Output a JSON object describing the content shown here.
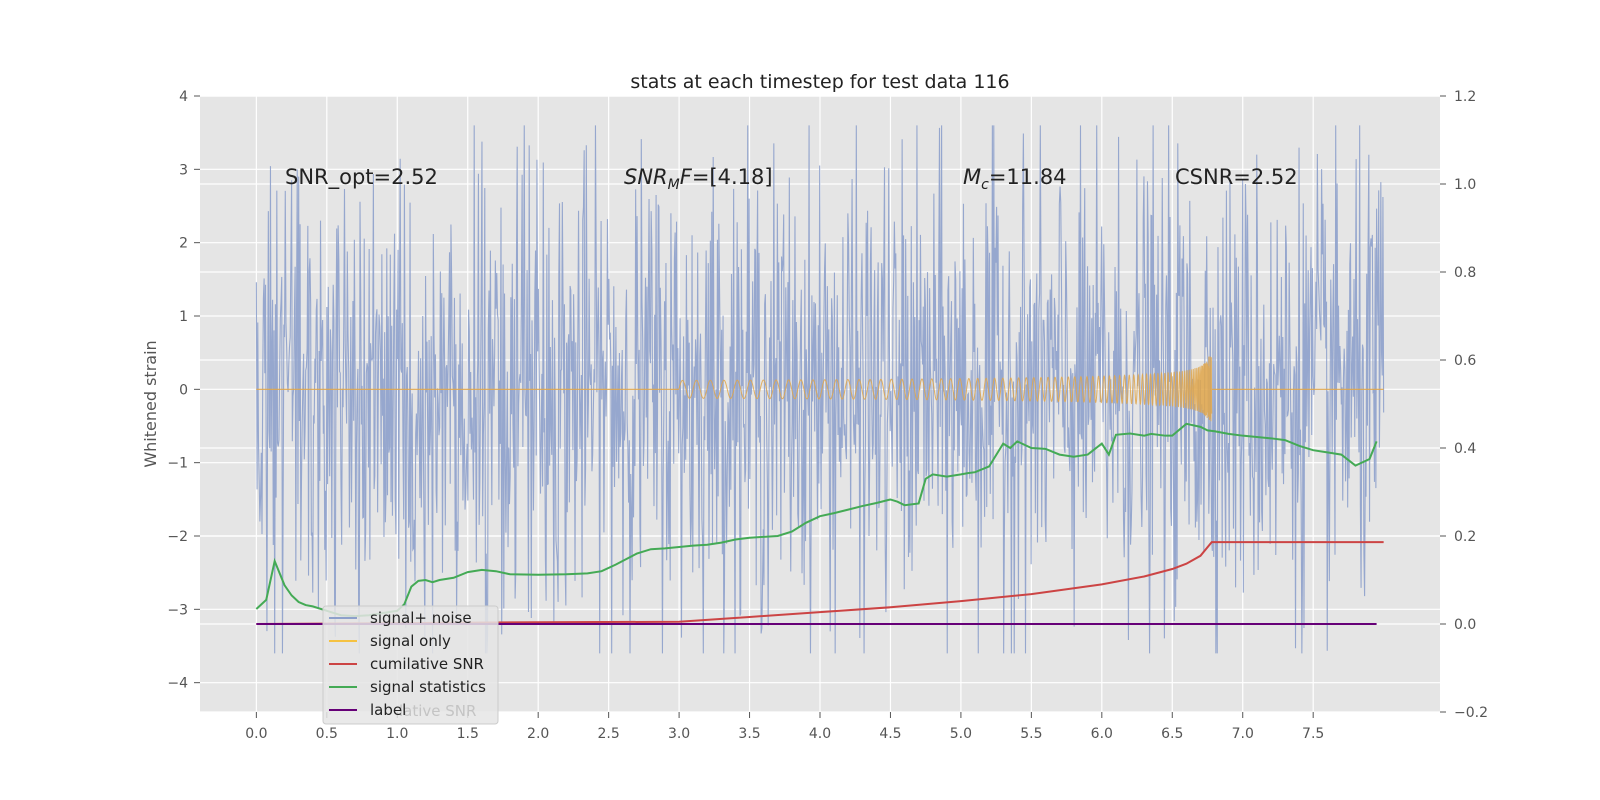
{
  "chart_data": {
    "type": "line",
    "title": "stats at each timestep for test data 116",
    "ylabel": "Whitened strain",
    "xlabel": "",
    "xlim": [
      -0.4,
      8.4
    ],
    "ylim": [
      -4.4,
      4.0
    ],
    "y2lim": [
      -0.2,
      1.2
    ],
    "x_ticks": [
      "0.0",
      "0.5",
      "1.0",
      "1.5",
      "2.0",
      "2.5",
      "3.0",
      "3.5",
      "4.0",
      "4.5",
      "5.0",
      "5.5",
      "6.0",
      "6.5",
      "7.0",
      "7.5"
    ],
    "y_ticks": [
      "4",
      "3",
      "2",
      "1",
      "0",
      "−1",
      "−2",
      "−3",
      "−4"
    ],
    "y2_ticks": [
      "1.2",
      "1.0",
      "0.8",
      "0.6",
      "0.4",
      "0.2",
      "0.0",
      "−0.2"
    ],
    "grid": true,
    "legend_position": "lower-left",
    "annotations": {
      "snr_opt": "SNR_opt=2.52",
      "snr_mf_sym": "SNR",
      "snr_mf_sub": "M",
      "snr_mf_f": "F",
      "snr_mf_val": "=[4.18]",
      "mc_sym": "M",
      "mc_sub": "c",
      "mc_val": "=11.84",
      "csnr": "CSNR=2.52"
    },
    "legend": [
      {
        "label": "signal+ noise",
        "color": "#8da0cb"
      },
      {
        "label": "signal only",
        "color": "#f5c242"
      },
      {
        "label": "cumilative SNR",
        "color": "#cc4444"
      },
      {
        "label": "signal statistics",
        "color": "#44aa55"
      },
      {
        "label": "label",
        "color": "#660077"
      }
    ],
    "legend_hidden_text": "lative SNR",
    "series": [
      {
        "name": "signal+ noise",
        "axis": "left",
        "color": "#8da0cb",
        "description_range": [
          0,
          7.98
        ],
        "envelope": {
          "x": [
            0,
            8
          ],
          "typical_amplitude": 1.6,
          "peak_max": 3.6,
          "peak_min": -3.6
        }
      },
      {
        "name": "signal only",
        "axis": "left",
        "color": "#e0a64a",
        "chirp": {
          "x_start": 3.0,
          "x_end": 6.78,
          "peak_amplitude": 0.45,
          "flat_after": 0.0
        }
      },
      {
        "name": "cumilative SNR",
        "axis": "right",
        "color": "#cc4444",
        "x": [
          0,
          1,
          2,
          3,
          3.5,
          4,
          4.5,
          5,
          5.5,
          6,
          6.3,
          6.5,
          6.6,
          6.7,
          6.78,
          7,
          7.5,
          8
        ],
        "y": [
          0.0,
          0.002,
          0.004,
          0.005,
          0.016,
          0.027,
          0.038,
          0.052,
          0.068,
          0.09,
          0.108,
          0.125,
          0.137,
          0.155,
          0.186,
          0.186,
          0.186,
          0.186
        ]
      },
      {
        "name": "signal statistics",
        "axis": "right",
        "color": "#44aa55",
        "x": [
          0,
          0.07,
          0.13,
          0.2,
          0.25,
          0.3,
          0.35,
          0.4,
          0.5,
          0.6,
          0.7,
          0.8,
          0.9,
          1.0,
          1.05,
          1.1,
          1.15,
          1.2,
          1.25,
          1.3,
          1.4,
          1.5,
          1.6,
          1.7,
          1.8,
          2.0,
          2.2,
          2.35,
          2.45,
          2.55,
          2.7,
          2.8,
          2.9,
          3.0,
          3.1,
          3.2,
          3.3,
          3.4,
          3.5,
          3.6,
          3.7,
          3.8,
          3.9,
          4.0,
          4.1,
          4.2,
          4.3,
          4.4,
          4.5,
          4.55,
          4.6,
          4.7,
          4.75,
          4.8,
          4.9,
          5.0,
          5.05,
          5.1,
          5.2,
          5.3,
          5.35,
          5.4,
          5.5,
          5.6,
          5.7,
          5.8,
          5.9,
          6.0,
          6.05,
          6.1,
          6.2,
          6.3,
          6.35,
          6.45,
          6.5,
          6.6,
          6.7,
          6.75,
          6.8,
          6.9,
          7.0,
          7.1,
          7.2,
          7.3,
          7.4,
          7.5,
          7.6,
          7.7,
          7.8,
          7.9,
          7.95
        ],
        "y": [
          0.034,
          0.055,
          0.143,
          0.088,
          0.065,
          0.05,
          0.043,
          0.04,
          0.03,
          0.02,
          0.018,
          0.02,
          0.025,
          0.03,
          0.045,
          0.085,
          0.098,
          0.1,
          0.095,
          0.1,
          0.105,
          0.118,
          0.123,
          0.12,
          0.113,
          0.112,
          0.113,
          0.115,
          0.12,
          0.135,
          0.16,
          0.17,
          0.172,
          0.175,
          0.178,
          0.18,
          0.185,
          0.192,
          0.196,
          0.198,
          0.2,
          0.21,
          0.23,
          0.245,
          0.252,
          0.26,
          0.268,
          0.275,
          0.283,
          0.278,
          0.27,
          0.274,
          0.33,
          0.34,
          0.335,
          0.34,
          0.343,
          0.345,
          0.358,
          0.41,
          0.4,
          0.415,
          0.4,
          0.398,
          0.385,
          0.38,
          0.385,
          0.41,
          0.385,
          0.43,
          0.433,
          0.428,
          0.432,
          0.428,
          0.428,
          0.455,
          0.448,
          0.44,
          0.438,
          0.432,
          0.428,
          0.425,
          0.422,
          0.418,
          0.405,
          0.395,
          0.39,
          0.385,
          0.36,
          0.375,
          0.415
        ]
      },
      {
        "name": "label",
        "axis": "right",
        "color": "#660077",
        "x": [
          0,
          7.95
        ],
        "y": [
          0.0,
          0.0
        ]
      }
    ]
  }
}
